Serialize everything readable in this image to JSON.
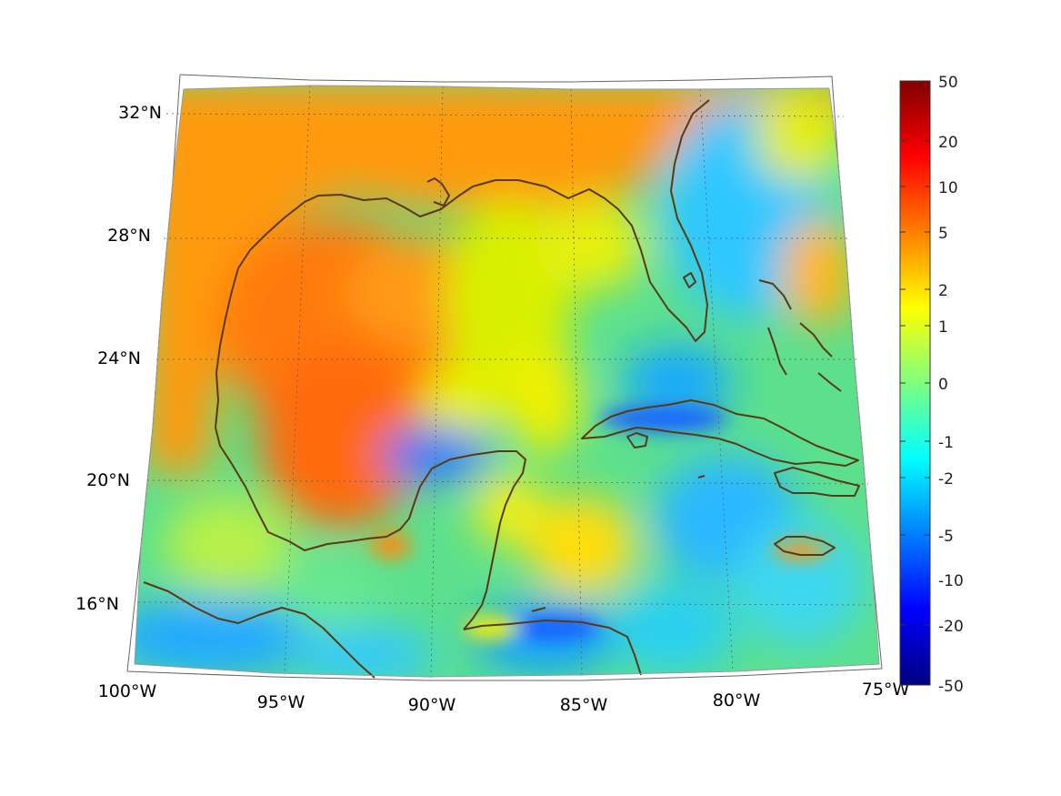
{
  "map": {
    "projection": "lambert-conic",
    "region": "Gulf of Mexico and Caribbean",
    "lon_range": [
      -100,
      -75
    ],
    "lat_range": [
      14,
      33
    ],
    "lat_ticks": [
      "32°N",
      "28°N",
      "24°N",
      "20°N",
      "16°N"
    ],
    "lon_ticks": [
      "100°W",
      "95°W",
      "90°W",
      "85°W",
      "80°W",
      "75°W"
    ],
    "grid": "dotted",
    "coastline_color": "#5a3a14"
  },
  "colorbar": {
    "colormap": "jet",
    "tick_labels": [
      "50",
      "20",
      "10",
      "5",
      "2",
      "1",
      "0",
      "-1",
      "-2",
      "-5",
      "-10",
      "-20",
      "-50"
    ]
  }
}
